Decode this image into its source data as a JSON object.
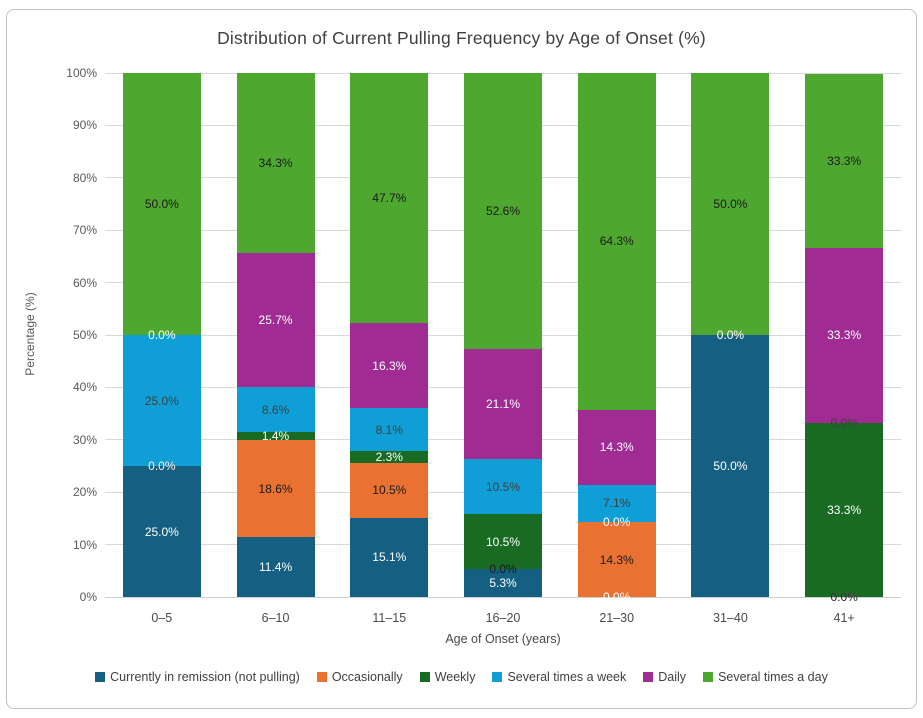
{
  "page": {
    "background": "#ffffff",
    "card_border_color": "#c2c2c2"
  },
  "chart_data": {
    "type": "bar",
    "stacked": true,
    "title": "Distribution of Current Pulling Frequency by Age of Onset (%)",
    "xlabel": "Age of Onset (years)",
    "ylabel": "Percentage (%)",
    "ylim": [
      0,
      100
    ],
    "grid": true,
    "legend_position": "bottom",
    "value_suffix": "%",
    "ytick_labels": [
      "0%",
      "10%",
      "20%",
      "30%",
      "40%",
      "50%",
      "60%",
      "70%",
      "80%",
      "90%",
      "100%"
    ],
    "categories": [
      "0–5",
      "6–10",
      "11–15",
      "16–20",
      "21–30",
      "31–40",
      "41+"
    ],
    "series": [
      {
        "name": "Currently in remission (not pulling)",
        "color": "#156082",
        "label_color": "#ffffff",
        "values": [
          25.0,
          11.4,
          15.1,
          5.3,
          0.0,
          50.0,
          0.0
        ]
      },
      {
        "name": "Occasionally",
        "color": "#E97132",
        "label_color": "#1a1a1a",
        "values": [
          0.0,
          18.6,
          10.5,
          0.0,
          14.3,
          0.0,
          0.0
        ]
      },
      {
        "name": "Weekly",
        "color": "#196B24",
        "label_color": "#ffffff",
        "values": [
          0.0,
          1.4,
          2.3,
          10.5,
          0.0,
          0.0,
          33.3
        ]
      },
      {
        "name": "Several times a week",
        "color": "#0F9ED5",
        "label_color": "#404040",
        "values": [
          25.0,
          8.6,
          8.1,
          10.5,
          7.1,
          0.0,
          0.0
        ]
      },
      {
        "name": "Daily",
        "color": "#A02B93",
        "label_color": "#ffffff",
        "values": [
          0.0,
          25.7,
          16.3,
          21.1,
          14.3,
          0.0,
          33.3
        ]
      },
      {
        "name": "Several times a day",
        "color": "#4EA72E",
        "label_color": "#1a1a1a",
        "values": [
          50.0,
          34.3,
          47.7,
          52.6,
          64.3,
          50.0,
          33.3
        ]
      }
    ]
  }
}
